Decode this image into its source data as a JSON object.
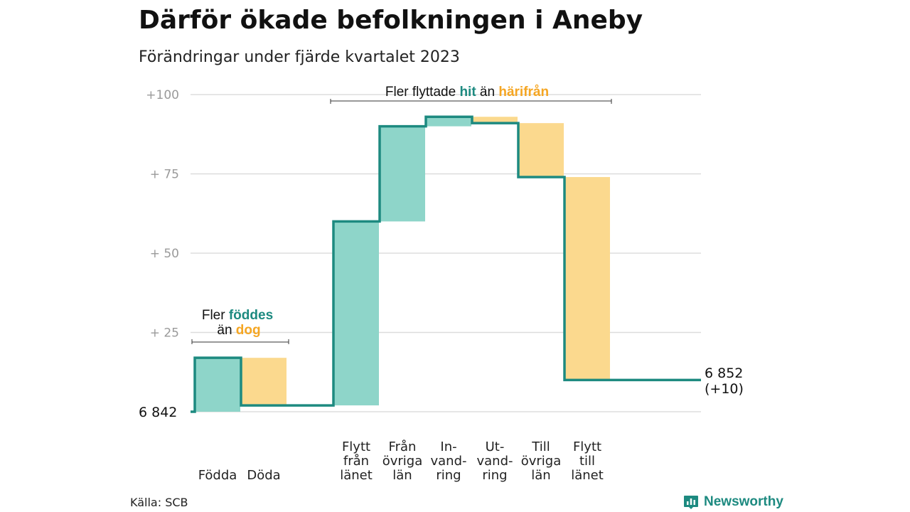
{
  "title": "Därför ökade befolkningen i Aneby",
  "subtitle": "Förändringar under fjärde kvartalet 2023",
  "source": "Källa: SCB",
  "brand": {
    "name": "Newsworthy",
    "icon": "bar-chart-logo-icon"
  },
  "colors": {
    "increase_fill": "#8ed5c9",
    "decrease_fill": "#fbd98e",
    "line": "#1d8a80",
    "accent_orange": "#f5a623",
    "grid": "#dddddd",
    "tick_text": "#9a9a9a"
  },
  "annotations": {
    "births": {
      "line1_prefix": "Fler ",
      "line1_em": "föddes",
      "line2_prefix": "än ",
      "line2_em": "dog"
    },
    "migration": {
      "prefix": "Fler flyttade ",
      "em1": "hit",
      "mid": " än ",
      "em2": "härifrån"
    }
  },
  "chart_data": {
    "type": "waterfall",
    "baseline_value": 6842,
    "start_label": "6  842",
    "end_label_lines": [
      "6 852",
      "(+10)"
    ],
    "y_ticks": [
      {
        "value": 25,
        "label": "+  25"
      },
      {
        "value": 50,
        "label": "+  50"
      },
      {
        "value": 75,
        "label": "+  75"
      },
      {
        "value": 100,
        "label": "+100"
      }
    ],
    "ylim": [
      0,
      100
    ],
    "grid": true,
    "steps": [
      {
        "label_lines": [
          "Födda"
        ],
        "start": 0,
        "end": 17,
        "direction": "up"
      },
      {
        "label_lines": [
          "Döda"
        ],
        "start": 17,
        "end": 2,
        "direction": "down"
      },
      {
        "label_lines": [
          "Flytt",
          "från",
          "länet"
        ],
        "start": 2,
        "end": 60,
        "direction": "up"
      },
      {
        "label_lines": [
          "Från",
          "övriga",
          "län"
        ],
        "start": 60,
        "end": 90,
        "direction": "up"
      },
      {
        "label_lines": [
          "In-",
          "vand-",
          "ring"
        ],
        "start": 90,
        "end": 93,
        "direction": "up"
      },
      {
        "label_lines": [
          "Ut-",
          "vand-",
          "ring"
        ],
        "start": 93,
        "end": 91,
        "direction": "down"
      },
      {
        "label_lines": [
          "Till",
          "övriga",
          "län"
        ],
        "start": 91,
        "end": 74,
        "direction": "down"
      },
      {
        "label_lines": [
          "Flytt",
          "till",
          "länet"
        ],
        "start": 74,
        "end": 10,
        "direction": "down"
      }
    ],
    "final_value": 10
  }
}
